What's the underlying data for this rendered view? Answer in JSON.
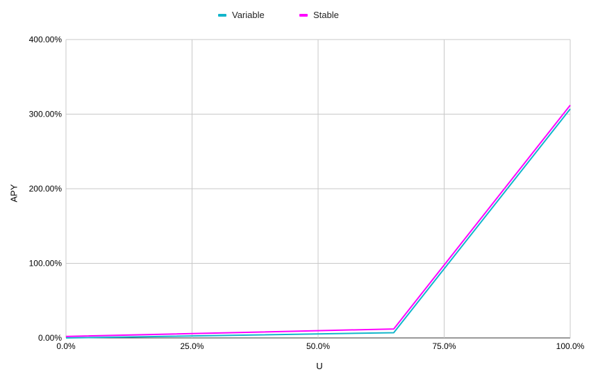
{
  "chart_data": {
    "type": "line",
    "xlabel": "U",
    "ylabel": "APY",
    "x": [
      0,
      0.65,
      1.0
    ],
    "x_ticks": [
      "0.0%",
      "25.0%",
      "50.0%",
      "75.0%",
      "100.0%"
    ],
    "y_ticks": [
      "0.00%",
      "100.00%",
      "200.00%",
      "300.00%",
      "400.00%"
    ],
    "xlim": [
      0,
      1
    ],
    "ylim": [
      0,
      4
    ],
    "grid": true,
    "legend_position": "top",
    "series": [
      {
        "name": "Variable",
        "color": "#12b5cb",
        "values": [
          0.0,
          0.07,
          3.07
        ]
      },
      {
        "name": "Stable",
        "color": "#ff00ff",
        "values": [
          0.02,
          0.12,
          3.12
        ]
      }
    ]
  }
}
